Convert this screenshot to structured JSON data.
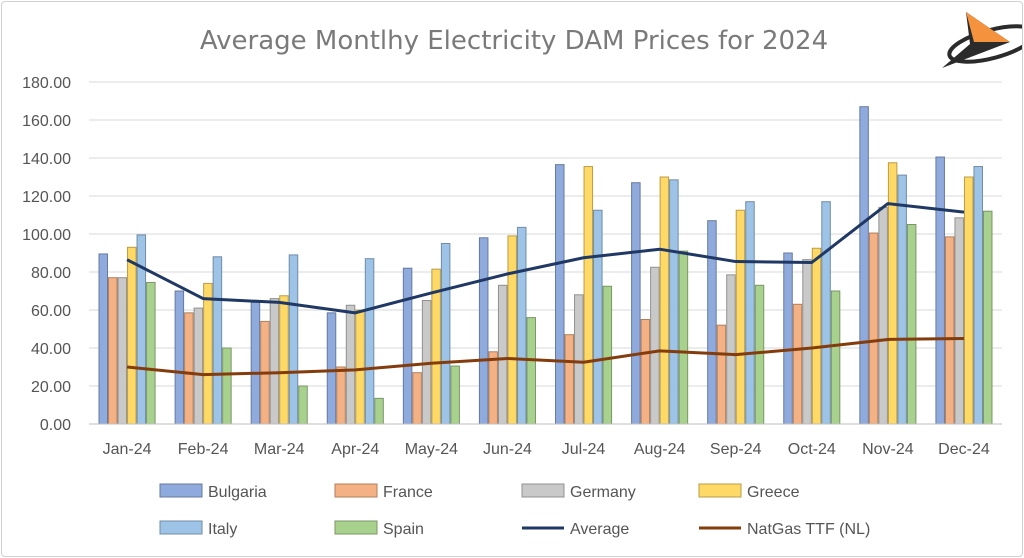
{
  "chart_data": {
    "type": "bar",
    "title": "Average Montlhy Electricity DAM Prices for 2024",
    "categories": [
      "Jan-24",
      "Feb-24",
      "Mar-24",
      "Apr-24",
      "May-24",
      "Jun-24",
      "Jul-24",
      "Aug-24",
      "Sep-24",
      "Oct-24",
      "Nov-24",
      "Dec-24"
    ],
    "ylim": [
      0,
      180
    ],
    "yticks": [
      "0.00",
      "20.00",
      "40.00",
      "60.00",
      "80.00",
      "100.00",
      "120.00",
      "140.00",
      "160.00",
      "180.00"
    ],
    "grid": true,
    "legend_position": "bottom",
    "series": [
      {
        "name": "Bulgaria",
        "kind": "bar",
        "color": "#8faadc",
        "values": [
          89.5,
          70,
          64,
          58.5,
          82,
          98,
          136.5,
          127,
          107,
          90,
          167,
          140.5
        ]
      },
      {
        "name": "France",
        "kind": "bar",
        "color": "#f4b183",
        "values": [
          77,
          58.5,
          54,
          30,
          27,
          38,
          47,
          55,
          52,
          63,
          100.5,
          98.5
        ]
      },
      {
        "name": "Germany",
        "kind": "bar",
        "color": "#c9c9c9",
        "values": [
          77,
          61,
          66,
          62.5,
          65,
          73,
          68,
          82.5,
          78.5,
          86.5,
          114,
          108.5
        ]
      },
      {
        "name": "Greece",
        "kind": "bar",
        "color": "#ffd966",
        "values": [
          93,
          74,
          67.5,
          60,
          81.5,
          99,
          135.5,
          130,
          112.5,
          92.5,
          137.5,
          130
        ]
      },
      {
        "name": "Italy",
        "kind": "bar",
        "color": "#9dc3e6",
        "values": [
          99.5,
          88,
          89,
          87,
          95,
          103.5,
          112.5,
          128.5,
          117,
          117,
          131,
          135.5
        ]
      },
      {
        "name": "Spain",
        "kind": "bar",
        "color": "#a9d18e",
        "values": [
          74.5,
          40,
          20,
          13.5,
          30.5,
          56,
          72.5,
          91,
          73,
          70,
          105,
          112
        ]
      },
      {
        "name": "Average",
        "kind": "line",
        "color": "#203864",
        "values": [
          86.5,
          66,
          64,
          58.5,
          69,
          79,
          87.5,
          92,
          85.5,
          85,
          116,
          111.5
        ]
      },
      {
        "name": "NatGas TTF (NL)",
        "kind": "line",
        "color": "#843c0c",
        "values": [
          30,
          26,
          27,
          28.5,
          32,
          34.5,
          32.5,
          38.5,
          36.5,
          40,
          44.5,
          45
        ]
      }
    ]
  },
  "logo": {
    "icon": "compass-arrow-logo-icon",
    "colors": [
      "#2b2b2b",
      "#f5923e"
    ]
  }
}
